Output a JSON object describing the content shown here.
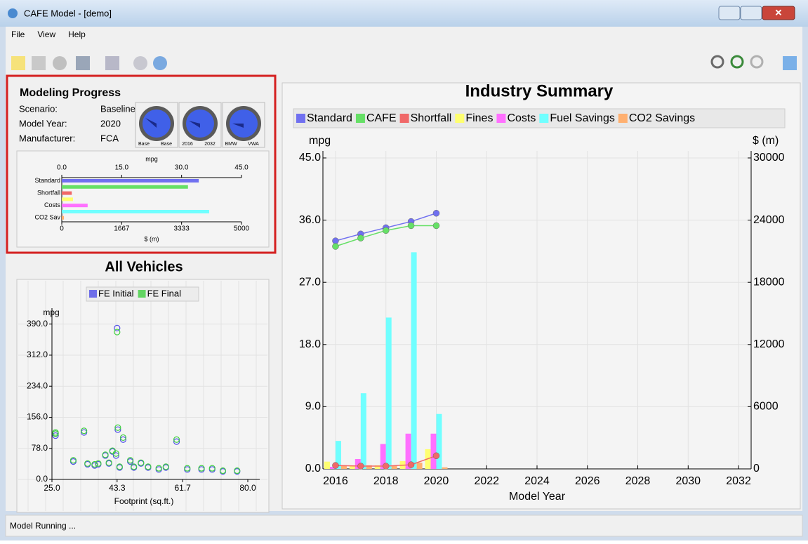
{
  "window": {
    "title": "CAFE Model - [demo]",
    "status": "Model Running ..."
  },
  "menu": [
    "File",
    "View",
    "Help"
  ],
  "progress": {
    "title": "Modeling Progress",
    "fields": [
      {
        "label": "Scenario:",
        "value": "Baseline"
      },
      {
        "label": "Model Year:",
        "value": "2020"
      },
      {
        "label": "Manufacturer:",
        "value": "FCA"
      }
    ],
    "gauges": [
      [
        "Base",
        "Base"
      ],
      [
        "2016",
        "2032"
      ],
      [
        "BMW",
        "VWA"
      ]
    ]
  },
  "chart_data": [
    {
      "type": "hbar",
      "categories": [
        "Standard",
        null,
        "Shortfall",
        null,
        "Costs",
        null,
        "CO2 Sav"
      ],
      "values": [
        34.3,
        31.6,
        2.5,
        312,
        720,
        4100,
        60
      ],
      "axes": [
        "x",
        "x",
        "x",
        "x2",
        "x2",
        "x2",
        "x2"
      ],
      "colors": [
        "#7070f0",
        "#66e066",
        "#f06868",
        "#ffff70",
        "#ff70ff",
        "#70ffff",
        "#ffb070"
      ],
      "xlabel": "mpg",
      "x2label": "$ (m)",
      "xlim": [
        0,
        45
      ],
      "xticks": [
        {
          "value": 0,
          "label": "0.0"
        },
        {
          "value": 15,
          "label": "15.0"
        },
        {
          "value": 30,
          "label": "30.0"
        },
        {
          "value": 45,
          "label": "45.0"
        }
      ],
      "x2lim": [
        0,
        5000
      ],
      "x2ticks": [
        0,
        1667,
        3333,
        5000
      ]
    },
    {
      "type": "scatter",
      "title": "All Vehicles",
      "xlabel": "Footprint (sq.ft.)",
      "ylabel": "mpg",
      "grid": true,
      "xlim": [
        25,
        80
      ],
      "xticks": [
        {
          "value": 25,
          "label": "25.0"
        },
        {
          "value": 43.3,
          "label": "43.3"
        },
        {
          "value": 61.7,
          "label": "61.7"
        },
        {
          "value": 80,
          "label": "80.0"
        }
      ],
      "ylim": [
        0,
        430
      ],
      "yticks": [
        {
          "value": 0,
          "label": "0.0"
        },
        {
          "value": 78,
          "label": "78.0"
        },
        {
          "value": 156,
          "label": "156.0"
        },
        {
          "value": 234,
          "label": "234.0"
        },
        {
          "value": 312,
          "label": "312.0"
        },
        {
          "value": 390,
          "label": "390.0"
        }
      ],
      "series": [
        {
          "name": "FE Initial",
          "color": "#5050e8",
          "x": [
            26,
            26,
            31,
            34,
            35,
            37,
            38,
            40,
            41,
            42,
            43,
            43.3,
            43.5,
            44,
            45,
            47,
            48,
            50,
            52,
            55,
            57,
            60,
            63,
            67,
            70,
            73,
            77
          ],
          "values": [
            115,
            110,
            45,
            118,
            38,
            35,
            38,
            60,
            40,
            70,
            60,
            380,
            125,
            30,
            100,
            45,
            30,
            40,
            30,
            25,
            30,
            95,
            25,
            25,
            25,
            20,
            20
          ]
        },
        {
          "name": "FE Final",
          "color": "#40d040",
          "x": [
            26,
            26,
            31,
            34,
            35,
            37,
            38,
            40,
            41,
            42,
            43,
            43.3,
            43.5,
            44,
            45,
            47,
            48,
            50,
            52,
            55,
            57,
            60,
            63,
            67,
            70,
            73,
            77
          ],
          "values": [
            118,
            115,
            48,
            122,
            40,
            38,
            40,
            62,
            42,
            72,
            65,
            370,
            130,
            32,
            105,
            48,
            32,
            42,
            32,
            28,
            32,
            100,
            28,
            28,
            28,
            22,
            22
          ]
        }
      ]
    },
    {
      "type": "combo",
      "title": "Industry Summary",
      "xlabel": "Model Year",
      "ylabel": "mpg",
      "y2label": "$ (m)",
      "grid": true,
      "xlim": [
        2015.5,
        2032.5
      ],
      "xticks": [
        2016,
        2018,
        2020,
        2022,
        2024,
        2026,
        2028,
        2030,
        2032
      ],
      "ylim": [
        0,
        45
      ],
      "yticks": [
        {
          "value": 0,
          "label": "0.0"
        },
        {
          "value": 9,
          "label": "9.0"
        },
        {
          "value": 18,
          "label": "18.0"
        },
        {
          "value": 27,
          "label": "27.0"
        },
        {
          "value": 36,
          "label": "36.0"
        },
        {
          "value": 45,
          "label": "45.0"
        }
      ],
      "y2lim": [
        0,
        30000
      ],
      "y2ticks": [
        0,
        6000,
        12000,
        18000,
        24000,
        30000
      ],
      "x": [
        2016,
        2017,
        2018,
        2019,
        2020
      ],
      "series": [
        {
          "name": "Standard",
          "color": "#7070f0",
          "kind": "line",
          "values": [
            33.0,
            34.0,
            34.9,
            35.8,
            37.0
          ]
        },
        {
          "name": "CAFE",
          "color": "#66e066",
          "kind": "line",
          "values": [
            32.2,
            33.4,
            34.5,
            35.2,
            35.2
          ]
        },
        {
          "name": "Shortfall",
          "color": "#f06868",
          "kind": "line",
          "values": [
            0.5,
            0.4,
            0.4,
            0.6,
            1.9
          ]
        },
        {
          "name": "Fines",
          "color": "#ffff70",
          "kind": "bar",
          "axis": "y2",
          "values": [
            700,
            300,
            350,
            750,
            1900
          ]
        },
        {
          "name": "Costs",
          "color": "#ff70ff",
          "kind": "bar",
          "axis": "y2",
          "values": [
            200,
            950,
            2400,
            3400,
            3400
          ]
        },
        {
          "name": "Fuel Savings",
          "color": "#70ffff",
          "kind": "bar",
          "axis": "y2",
          "values": [
            2700,
            7300,
            14600,
            20900,
            5300
          ]
        },
        {
          "name": "CO2 Savings",
          "color": "#ffb070",
          "kind": "bar",
          "axis": "y2",
          "values": [
            350,
            350,
            350,
            600,
            150
          ]
        }
      ]
    }
  ]
}
